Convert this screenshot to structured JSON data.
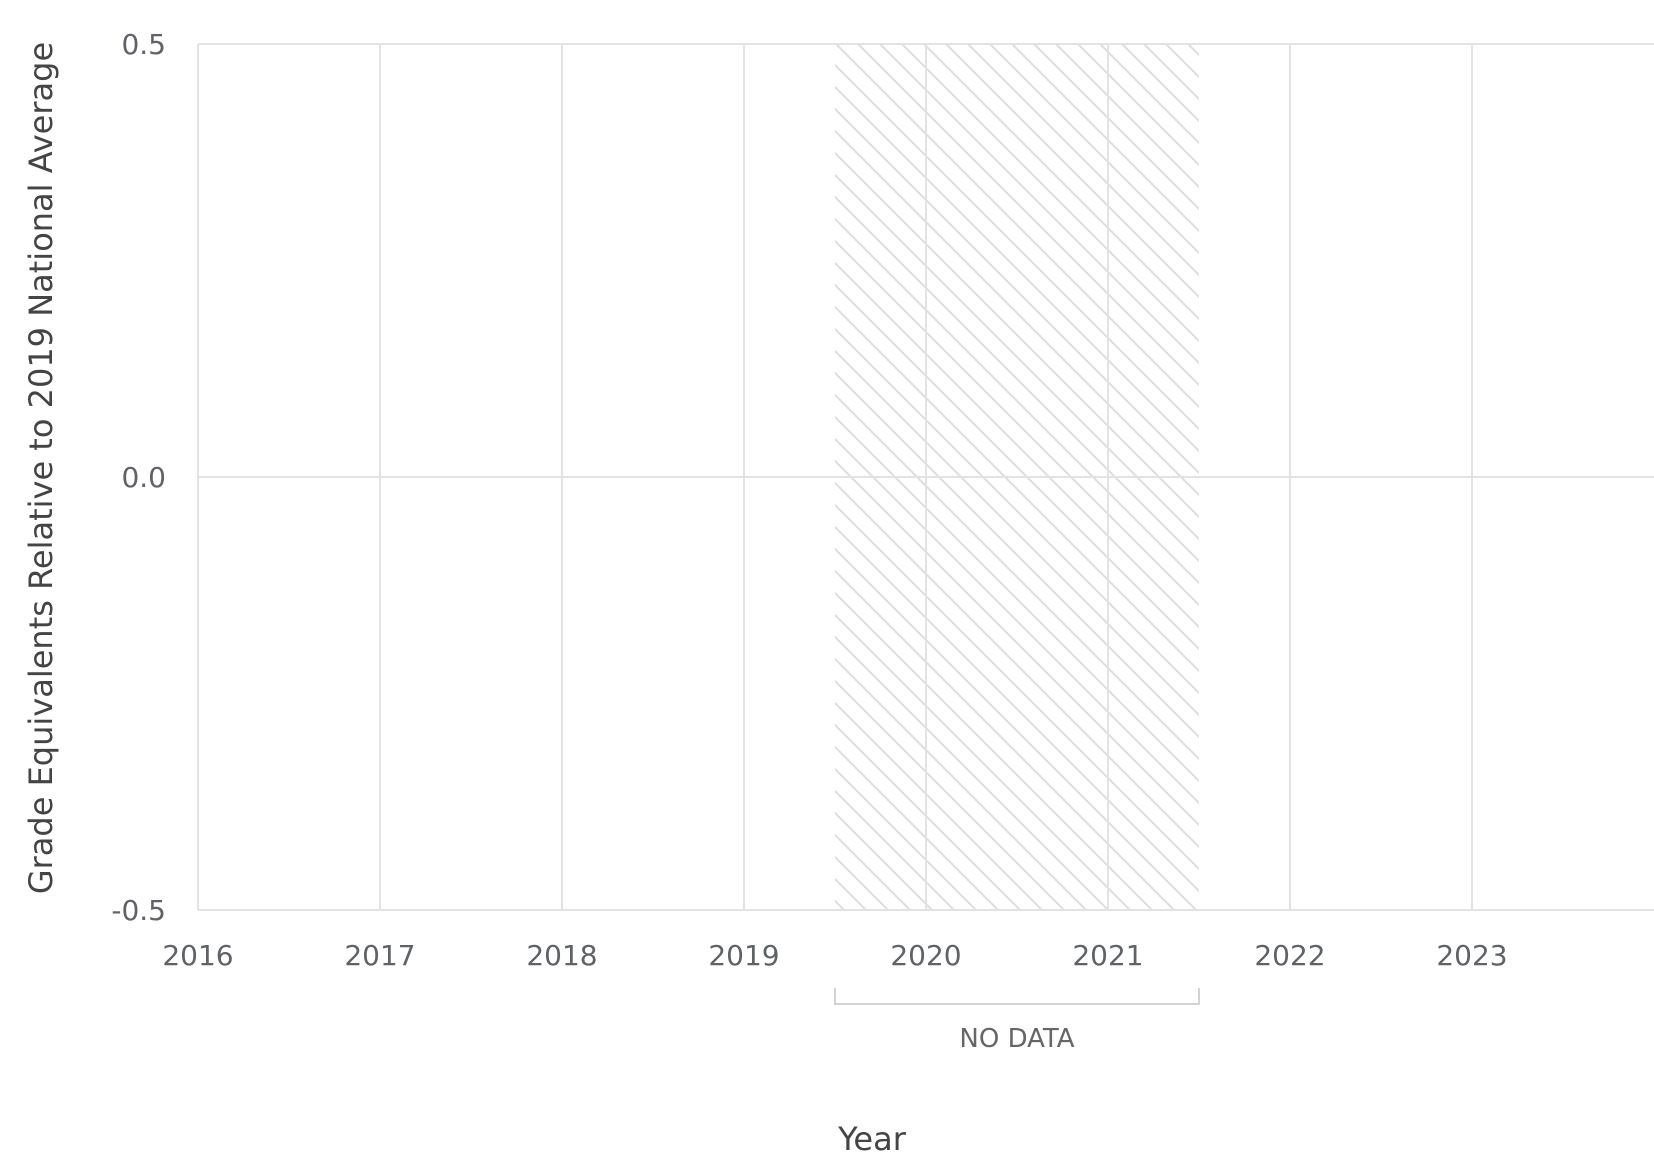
{
  "chart_data": {
    "type": "line",
    "xlabel": "Year",
    "ylabel": "Grade Equivalents Relative to 2019 National Average",
    "x_ticks": [
      "2016",
      "2017",
      "2018",
      "2019",
      "2020",
      "2021",
      "2022",
      "2023"
    ],
    "y_ticks": [
      "0.5",
      "0.0",
      "-0.5"
    ],
    "xlim": [
      2016,
      2024
    ],
    "ylim": [
      -0.5,
      0.5
    ],
    "grid": true,
    "series": [],
    "no_data_region": {
      "x_start": 2019.5,
      "x_end": 2021.5,
      "label": "NO DATA"
    }
  }
}
